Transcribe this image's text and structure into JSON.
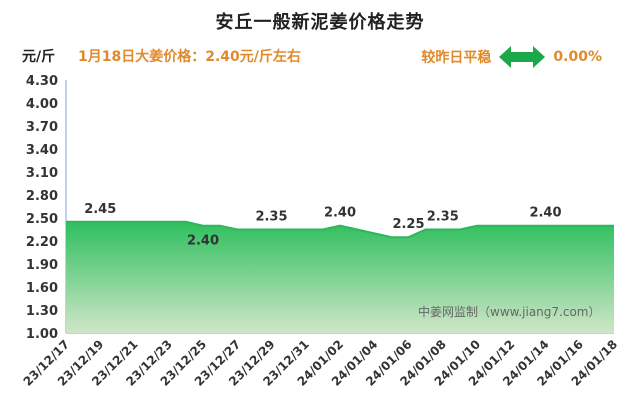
{
  "header": {
    "title": "安丘一般新泥姜价格走势",
    "unit": "元/斤",
    "price_note": "1月18日大姜价格：2.40元/斤左右",
    "compare_label": "较昨日平稳",
    "compare_value": "0.00%"
  },
  "watermark": "中姜网监制（www.jiang7.com）",
  "colors": {
    "accent_orange": "#e08a2c",
    "line": "#2fb55a",
    "fill_top": "#2fbf5e",
    "fill_bottom": "#cfe6c8",
    "arrow": "#1aa84a"
  },
  "chart_data": {
    "type": "area",
    "title": "安丘一般新泥姜价格走势",
    "ylabel": "元/斤",
    "ylim": [
      1.0,
      4.3
    ],
    "y_ticks": [
      "1.00",
      "1.30",
      "1.60",
      "1.90",
      "2.20",
      "2.50",
      "2.80",
      "3.10",
      "3.40",
      "3.70",
      "4.00",
      "4.30"
    ],
    "x_tick_labels": [
      "23/12/17",
      "23/12/19",
      "23/12/21",
      "23/12/23",
      "23/12/25",
      "23/12/27",
      "23/12/29",
      "23/12/31",
      "24/01/02",
      "24/01/04",
      "24/01/06",
      "24/01/08",
      "24/01/10",
      "24/01/12",
      "24/01/14",
      "24/01/16",
      "24/01/18"
    ],
    "x": [
      "23/12/17",
      "23/12/18",
      "23/12/19",
      "23/12/20",
      "23/12/21",
      "23/12/22",
      "23/12/23",
      "23/12/24",
      "23/12/25",
      "23/12/26",
      "23/12/27",
      "23/12/28",
      "23/12/29",
      "23/12/30",
      "23/12/31",
      "24/01/01",
      "24/01/02",
      "24/01/03",
      "24/01/04",
      "24/01/05",
      "24/01/06",
      "24/01/07",
      "24/01/08",
      "24/01/09",
      "24/01/10",
      "24/01/11",
      "24/01/12",
      "24/01/13",
      "24/01/14",
      "24/01/15",
      "24/01/16",
      "24/01/17",
      "24/01/18"
    ],
    "values": [
      2.45,
      2.45,
      2.45,
      2.45,
      2.45,
      2.45,
      2.45,
      2.45,
      2.4,
      2.4,
      2.35,
      2.35,
      2.35,
      2.35,
      2.35,
      2.35,
      2.4,
      2.35,
      2.3,
      2.25,
      2.25,
      2.35,
      2.35,
      2.35,
      2.4,
      2.4,
      2.4,
      2.4,
      2.4,
      2.4,
      2.4,
      2.4,
      2.4
    ],
    "data_labels": [
      {
        "index": 2,
        "text": "2.45"
      },
      {
        "index": 8,
        "text": "2.40"
      },
      {
        "index": 12,
        "text": "2.35"
      },
      {
        "index": 16,
        "text": "2.40"
      },
      {
        "index": 20,
        "text": "2.25"
      },
      {
        "index": 22,
        "text": "2.35"
      },
      {
        "index": 28,
        "text": "2.40"
      }
    ],
    "grid": false
  }
}
